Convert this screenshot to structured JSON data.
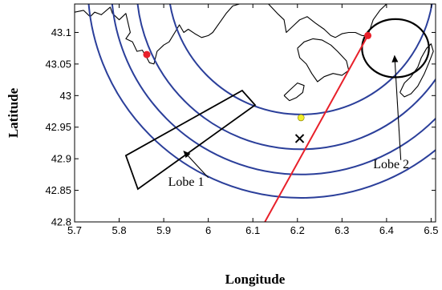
{
  "chart_data": {
    "type": "map",
    "xlabel": "Longitude",
    "ylabel": "Latitude",
    "xlim": [
      5.7,
      6.51
    ],
    "ylim": [
      42.8,
      43.145
    ],
    "grid": false,
    "xticks": [
      5.7,
      5.8,
      5.9,
      6,
      6.1,
      6.2,
      6.3,
      6.4,
      6.5
    ],
    "xtick_labels": [
      "5.7",
      "5.8",
      "5.9",
      "6",
      "6.1",
      "6.2",
      "6.3",
      "6.4",
      "6.5"
    ],
    "yticks": [
      42.8,
      42.85,
      42.9,
      42.95,
      43,
      43.05,
      43.1
    ],
    "ytick_labels": [
      "42.8",
      "42.85",
      "42.9",
      "42.95",
      "43",
      "43.05",
      "43.1"
    ],
    "colors": {
      "arcs": "#2b3f9a",
      "line": "#e8202a",
      "coast": "#000000",
      "marker_yellow": "#f2ee2a"
    },
    "arcs": {
      "center": [
        6.208,
        43.175
      ],
      "radii_lat": [
        0.21,
        0.26,
        0.3,
        0.337
      ]
    },
    "red_line": {
      "x": [
        6.127,
        6.358
      ],
      "y": [
        42.8,
        43.095
      ]
    },
    "red_points": [
      {
        "x": 5.862,
        "y": 43.065
      },
      {
        "x": 6.358,
        "y": 43.095
      }
    ],
    "yellow_point": {
      "x": 6.208,
      "y": 42.965
    },
    "cross_marker": {
      "x": 6.205,
      "y": 42.932
    },
    "lobe1_polygon": [
      [
        5.815,
        42.905
      ],
      [
        6.076,
        43.008
      ],
      [
        6.105,
        42.985
      ],
      [
        5.842,
        42.852
      ]
    ],
    "lobe2_ellipse": {
      "cx": 6.42,
      "cy": 43.075,
      "rx": 0.075,
      "ry": 0.046
    },
    "annotations": [
      {
        "label": "Lobe 1",
        "text_at": [
          5.91,
          42.857
        ],
        "arrow_from": [
          6.0,
          42.87
        ],
        "arrow_to": [
          5.945,
          42.912
        ]
      },
      {
        "label": "Lobe 2",
        "text_at": [
          6.37,
          42.885
        ],
        "arrow_from": [
          6.432,
          42.898
        ],
        "arrow_to": [
          6.418,
          43.063
        ]
      }
    ],
    "coastline": [
      [
        [
          5.7,
          43.132
        ],
        [
          5.72,
          43.135
        ],
        [
          5.735,
          43.125
        ],
        [
          5.745,
          43.132
        ],
        [
          5.76,
          43.128
        ],
        [
          5.78,
          43.14
        ],
        [
          5.785,
          43.13
        ],
        [
          5.8,
          43.12
        ],
        [
          5.815,
          43.13
        ],
        [
          5.825,
          43.1
        ],
        [
          5.815,
          43.09
        ],
        [
          5.83,
          43.085
        ],
        [
          5.84,
          43.07
        ],
        [
          5.852,
          43.072
        ],
        [
          5.862,
          43.06
        ],
        [
          5.868,
          43.052
        ],
        [
          5.878,
          43.05
        ],
        [
          5.885,
          43.07
        ],
        [
          5.9,
          43.08
        ],
        [
          5.912,
          43.085
        ],
        [
          5.925,
          43.1
        ],
        [
          5.935,
          43.112
        ],
        [
          5.945,
          43.1
        ],
        [
          5.955,
          43.105
        ],
        [
          5.97,
          43.098
        ],
        [
          5.985,
          43.092
        ],
        [
          6.0,
          43.095
        ],
        [
          6.01,
          43.1
        ],
        [
          6.028,
          43.118
        ],
        [
          6.04,
          43.13
        ],
        [
          6.055,
          43.142
        ],
        [
          6.07,
          43.145
        ]
      ],
      [
        [
          6.135,
          43.145
        ],
        [
          6.155,
          43.13
        ],
        [
          6.17,
          43.12
        ],
        [
          6.175,
          43.1
        ],
        [
          6.19,
          43.11
        ],
        [
          6.205,
          43.12
        ],
        [
          6.222,
          43.125
        ],
        [
          6.24,
          43.115
        ],
        [
          6.26,
          43.105
        ],
        [
          6.275,
          43.095
        ],
        [
          6.285,
          43.092
        ],
        [
          6.3,
          43.098
        ],
        [
          6.315,
          43.1
        ],
        [
          6.33,
          43.1
        ],
        [
          6.345,
          43.095
        ],
        [
          6.358,
          43.095
        ],
        [
          6.37,
          43.12
        ],
        [
          6.385,
          43.135
        ],
        [
          6.4,
          43.145
        ]
      ],
      [
        [
          6.2,
          43.075
        ],
        [
          6.215,
          43.085
        ],
        [
          6.235,
          43.09
        ],
        [
          6.255,
          43.088
        ],
        [
          6.275,
          43.08
        ],
        [
          6.29,
          43.07
        ],
        [
          6.31,
          43.055
        ],
        [
          6.315,
          43.04
        ],
        [
          6.3,
          43.032
        ],
        [
          6.28,
          43.035
        ],
        [
          6.26,
          43.03
        ],
        [
          6.245,
          43.022
        ],
        [
          6.232,
          43.035
        ],
        [
          6.22,
          43.05
        ],
        [
          6.205,
          43.06
        ],
        [
          6.2,
          43.075
        ]
      ],
      [
        [
          6.17,
          43.0
        ],
        [
          6.185,
          43.01
        ],
        [
          6.2,
          43.02
        ],
        [
          6.215,
          43.016
        ],
        [
          6.212,
          43.005
        ],
        [
          6.198,
          42.997
        ],
        [
          6.182,
          42.992
        ],
        [
          6.17,
          43.0
        ]
      ],
      [
        [
          6.43,
          43.005
        ],
        [
          6.44,
          43.02
        ],
        [
          6.455,
          43.03
        ],
        [
          6.47,
          43.045
        ],
        [
          6.478,
          43.06
        ],
        [
          6.49,
          43.075
        ],
        [
          6.5,
          43.082
        ],
        [
          6.505,
          43.07
        ],
        [
          6.495,
          43.052
        ],
        [
          6.485,
          43.035
        ],
        [
          6.47,
          43.015
        ],
        [
          6.455,
          43.003
        ],
        [
          6.44,
          42.998
        ],
        [
          6.43,
          43.005
        ]
      ]
    ]
  }
}
